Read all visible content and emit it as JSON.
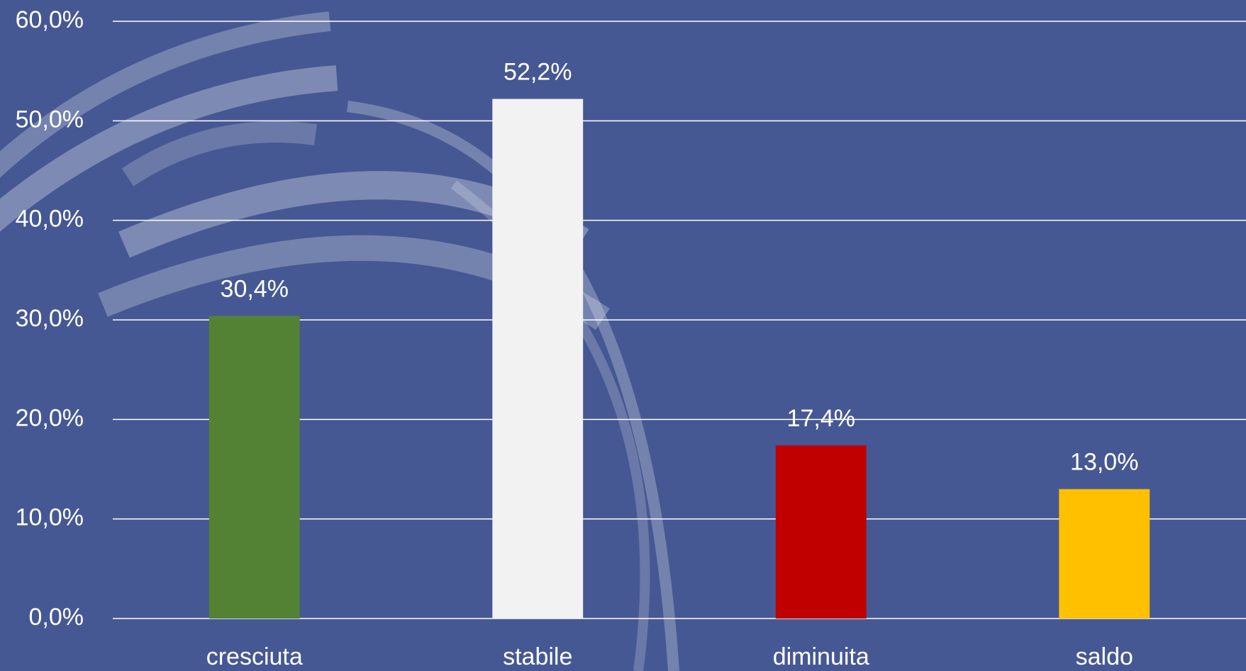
{
  "chart_data": {
    "type": "bar",
    "categories": [
      "cresciuta",
      "stabile",
      "diminuita",
      "saldo"
    ],
    "values": [
      30.4,
      52.2,
      17.4,
      13.0
    ],
    "value_labels": [
      "30,4%",
      "52,2%",
      "17,4%",
      "13,0%"
    ],
    "colors": [
      "#548235",
      "#f2f2f2",
      "#c00000",
      "#ffc000"
    ],
    "ylim": [
      0,
      60
    ],
    "yticks": [
      {
        "value": 0,
        "label": "0,0%"
      },
      {
        "value": 10,
        "label": "10,0%"
      },
      {
        "value": 20,
        "label": "20,0%"
      },
      {
        "value": 30,
        "label": "30,0%"
      },
      {
        "value": 40,
        "label": "40,0%"
      },
      {
        "value": 50,
        "label": "50,0%"
      },
      {
        "value": 60,
        "label": "60,0%"
      }
    ],
    "grid": true
  }
}
